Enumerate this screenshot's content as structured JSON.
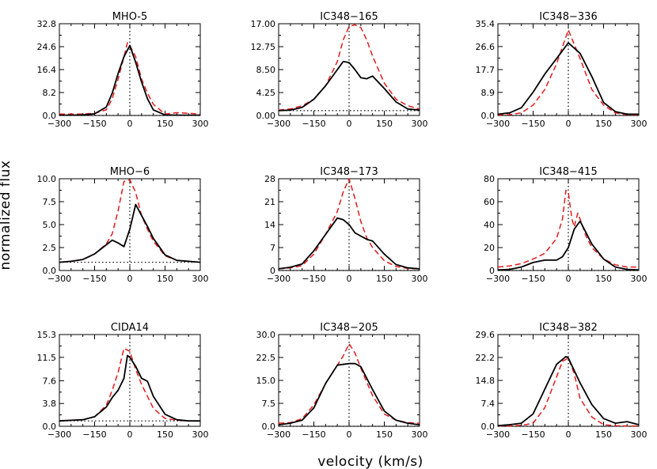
{
  "figure": {
    "xlabel": "velocity (km/s)",
    "ylabel": "normalized flux"
  },
  "chart_data": [
    {
      "type": "line",
      "title": "MHO-5",
      "xlim": [
        -300,
        300
      ],
      "ylim": [
        0,
        32.8
      ],
      "xticks": [
        -300,
        -150,
        0,
        150,
        300
      ],
      "xticklabels": [
        "−300",
        "−150",
        "0",
        "150",
        "300"
      ],
      "yticks": [
        0.0,
        8.2,
        16.4,
        24.6,
        32.8
      ],
      "yticklabels": [
        "0.0",
        "8.2",
        "16.4",
        "24.6",
        "32.8"
      ],
      "reference_lines": {
        "horizontal_y": 0,
        "vertical_x": 0
      },
      "series": [
        {
          "color": "#000000",
          "dash": "solid",
          "x": [
            -300,
            -250,
            -200,
            -150,
            -100,
            -75,
            -50,
            -25,
            0,
            25,
            50,
            75,
            100,
            150,
            200,
            250,
            300
          ],
          "y": [
            0.1,
            0.1,
            0.2,
            0.6,
            3,
            8,
            15,
            21,
            25,
            19,
            12,
            6,
            2,
            0.2,
            0.1,
            0.1,
            0.1
          ]
        },
        {
          "color": "#e41a1c",
          "dash": "dashed",
          "x": [
            -300,
            -250,
            -200,
            -150,
            -100,
            -75,
            -50,
            -25,
            -10,
            0,
            25,
            50,
            75,
            100,
            150,
            200,
            250,
            300
          ],
          "y": [
            0.5,
            0.5,
            0.5,
            0.8,
            2,
            6,
            13,
            21,
            26,
            25,
            21,
            13,
            8,
            4,
            0.5,
            1,
            0.8,
            0.5
          ]
        }
      ]
    },
    {
      "type": "line",
      "title": "IC348−165",
      "xlim": [
        -300,
        300
      ],
      "ylim": [
        0,
        17
      ],
      "xticks": [
        -300,
        -150,
        0,
        150,
        300
      ],
      "xticklabels": [
        "−300",
        "−150",
        "0",
        "150",
        "300"
      ],
      "yticks": [
        0.0,
        4.25,
        8.5,
        12.75,
        17.0
      ],
      "yticklabels": [
        "0.00",
        "4.25",
        "8.50",
        "12.75",
        "17.00"
      ],
      "reference_lines": {
        "horizontal_y": 0.9,
        "vertical_x": 0
      },
      "series": [
        {
          "color": "#000000",
          "dash": "solid",
          "x": [
            -300,
            -250,
            -200,
            -150,
            -100,
            -50,
            -25,
            0,
            25,
            50,
            75,
            100,
            150,
            200,
            250,
            300
          ],
          "y": [
            0.9,
            1,
            1.5,
            3,
            5.5,
            8.5,
            10,
            9.8,
            8.5,
            7,
            6.8,
            7.3,
            5,
            2.5,
            1.2,
            1
          ]
        },
        {
          "color": "#e41a1c",
          "dash": "dashed",
          "x": [
            -300,
            -250,
            -200,
            -150,
            -100,
            -50,
            -25,
            0,
            25,
            50,
            75,
            100,
            150,
            200,
            250,
            300
          ],
          "y": [
            1,
            1.2,
            1.8,
            3,
            5.5,
            10,
            14,
            16.5,
            16.8,
            16.3,
            14,
            11,
            6,
            3,
            1.8,
            1.2
          ]
        }
      ]
    },
    {
      "type": "line",
      "title": "IC348−336",
      "xlim": [
        -300,
        300
      ],
      "ylim": [
        0,
        35.4
      ],
      "xticks": [
        -300,
        -150,
        0,
        150,
        300
      ],
      "xticklabels": [
        "−300",
        "−150",
        "0",
        "150",
        "300"
      ],
      "yticks": [
        0.0,
        8.9,
        17.7,
        26.6,
        35.4
      ],
      "yticklabels": [
        "0.0",
        "8.9",
        "17.7",
        "26.6",
        "35.4"
      ],
      "reference_lines": {
        "horizontal_y": 0,
        "vertical_x": 0
      },
      "series": [
        {
          "color": "#000000",
          "dash": "solid",
          "x": [
            -300,
            -250,
            -200,
            -150,
            -100,
            -50,
            0,
            50,
            100,
            150,
            200,
            250,
            300
          ],
          "y": [
            0.5,
            1,
            3,
            9,
            16,
            22,
            28,
            24,
            15,
            5,
            1.5,
            0.5,
            0.5
          ]
        },
        {
          "color": "#e41a1c",
          "dash": "dashed",
          "x": [
            -300,
            -250,
            -200,
            -150,
            -100,
            -50,
            0,
            50,
            100,
            150,
            200,
            250,
            300
          ],
          "y": [
            0.2,
            0.3,
            1,
            4,
            10,
            20,
            33,
            22,
            10,
            4,
            1,
            0.3,
            0.2
          ]
        }
      ]
    },
    {
      "type": "line",
      "title": "MHO−6",
      "xlim": [
        -300,
        300
      ],
      "ylim": [
        0,
        10
      ],
      "xticks": [
        -300,
        -150,
        0,
        150,
        300
      ],
      "xticklabels": [
        "−300",
        "−150",
        "0",
        "150",
        "300"
      ],
      "yticks": [
        0.0,
        2.5,
        5.0,
        7.5,
        10.0
      ],
      "yticklabels": [
        "0.0",
        "2.5",
        "5.0",
        "7.5",
        "10.0"
      ],
      "reference_lines": {
        "horizontal_y": 0.9,
        "vertical_x": 0
      },
      "series": [
        {
          "color": "#000000",
          "dash": "solid",
          "x": [
            -300,
            -250,
            -200,
            -150,
            -100,
            -75,
            -50,
            -25,
            0,
            25,
            50,
            75,
            100,
            150,
            200,
            250,
            300
          ],
          "y": [
            0.9,
            1,
            1.2,
            1.8,
            2.8,
            3.3,
            3,
            2.6,
            4.5,
            7.2,
            6,
            4.8,
            3.5,
            1.7,
            1.1,
            1,
            0.9
          ]
        },
        {
          "color": "#e41a1c",
          "dash": "dashed",
          "x": [
            -300,
            -250,
            -200,
            -150,
            -100,
            -75,
            -50,
            -25,
            0,
            25,
            50,
            75,
            100,
            150,
            200,
            250,
            300
          ],
          "y": [
            0.9,
            1,
            1.2,
            1.8,
            2.9,
            4,
            6.5,
            9.7,
            9.9,
            8.5,
            6,
            4.5,
            3.2,
            1.6,
            1.1,
            1,
            0.9
          ]
        }
      ]
    },
    {
      "type": "line",
      "title": "IC348−173",
      "xlim": [
        -300,
        300
      ],
      "ylim": [
        0,
        28
      ],
      "xticks": [
        -300,
        -150,
        0,
        150,
        300
      ],
      "xticklabels": [
        "−300",
        "−150",
        "0",
        "150",
        "300"
      ],
      "yticks": [
        0,
        7,
        14,
        21,
        28
      ],
      "yticklabels": [
        "0",
        "7",
        "14",
        "21",
        "28"
      ],
      "reference_lines": {
        "horizontal_y": 0,
        "vertical_x": 0
      },
      "series": [
        {
          "color": "#000000",
          "dash": "solid",
          "x": [
            -300,
            -250,
            -200,
            -150,
            -100,
            -50,
            -25,
            0,
            25,
            50,
            75,
            100,
            150,
            200,
            250,
            300
          ],
          "y": [
            0.5,
            1,
            2,
            6,
            11,
            16,
            15.5,
            14,
            11.5,
            10.5,
            9.5,
            9,
            5,
            1.8,
            0.8,
            0.5
          ]
        },
        {
          "color": "#e41a1c",
          "dash": "dashed",
          "x": [
            -300,
            -250,
            -200,
            -150,
            -100,
            -50,
            -25,
            0,
            25,
            50,
            75,
            100,
            150,
            200,
            250,
            300
          ],
          "y": [
            0.5,
            0.8,
            1.5,
            5,
            11,
            18,
            24,
            28,
            22,
            15,
            10,
            7,
            3,
            1.2,
            0.6,
            0.5
          ]
        }
      ]
    },
    {
      "type": "line",
      "title": "IC348−415",
      "xlim": [
        -300,
        300
      ],
      "ylim": [
        0,
        80
      ],
      "xticks": [
        -300,
        -150,
        0,
        150,
        300
      ],
      "xticklabels": [
        "−300",
        "−150",
        "0",
        "150",
        "300"
      ],
      "yticks": [
        0,
        20,
        40,
        60,
        80
      ],
      "yticklabels": [
        "0",
        "20",
        "40",
        "60",
        "80"
      ],
      "reference_lines": {
        "horizontal_y": 0,
        "vertical_x": 0
      },
      "series": [
        {
          "color": "#000000",
          "dash": "solid",
          "x": [
            -300,
            -250,
            -200,
            -150,
            -100,
            -50,
            -25,
            0,
            25,
            50,
            75,
            100,
            150,
            200,
            250,
            300
          ],
          "y": [
            0.5,
            1,
            3,
            7,
            9,
            9,
            12,
            20,
            36,
            43,
            33,
            23,
            10,
            3,
            1,
            0.5
          ]
        },
        {
          "color": "#e41a1c",
          "dash": "dashed",
          "x": [
            -300,
            -250,
            -200,
            -150,
            -100,
            -50,
            -25,
            -10,
            0,
            15,
            25,
            40,
            50,
            75,
            100,
            150,
            200,
            250,
            300
          ],
          "y": [
            3,
            4,
            6,
            10,
            15,
            28,
            45,
            70,
            68,
            45,
            38,
            50,
            45,
            30,
            20,
            10,
            5,
            3,
            3
          ]
        }
      ]
    },
    {
      "type": "line",
      "title": "CIDA14",
      "xlim": [
        -300,
        300
      ],
      "ylim": [
        0,
        15.3
      ],
      "xticks": [
        -300,
        -150,
        0,
        150,
        300
      ],
      "xticklabels": [
        "−300",
        "−150",
        "0",
        "150",
        "300"
      ],
      "yticks": [
        0.0,
        3.8,
        7.6,
        11.5,
        15.3
      ],
      "yticklabels": [
        "0.0",
        "3.8",
        "7.6",
        "11.5",
        "15.3"
      ],
      "reference_lines": {
        "horizontal_y": 0.9,
        "vertical_x": 0
      },
      "series": [
        {
          "color": "#000000",
          "dash": "solid",
          "x": [
            -300,
            -250,
            -200,
            -150,
            -100,
            -75,
            -50,
            -25,
            -10,
            0,
            25,
            50,
            75,
            100,
            150,
            200,
            250,
            300
          ],
          "y": [
            0.9,
            1,
            1.1,
            1.6,
            3.2,
            4.8,
            6,
            8,
            11.8,
            11.5,
            10,
            8,
            7.5,
            5,
            2,
            1.1,
            0.9,
            0.9
          ]
        },
        {
          "color": "#e41a1c",
          "dash": "dashed",
          "x": [
            -300,
            -250,
            -200,
            -150,
            -100,
            -75,
            -50,
            -25,
            0,
            25,
            50,
            75,
            100,
            150,
            200,
            250,
            300
          ],
          "y": [
            0.9,
            1,
            1.1,
            1.6,
            3.5,
            6,
            9,
            13,
            12.5,
            9.5,
            7,
            5,
            3,
            1.3,
            1,
            0.9,
            0.9
          ]
        }
      ]
    },
    {
      "type": "line",
      "title": "IC348−205",
      "xlim": [
        -300,
        300
      ],
      "ylim": [
        0,
        30
      ],
      "xticks": [
        -300,
        -150,
        0,
        150,
        300
      ],
      "xticklabels": [
        "−300",
        "−150",
        "0",
        "150",
        "300"
      ],
      "yticks": [
        0.0,
        7.5,
        15.0,
        22.5,
        30.0
      ],
      "yticklabels": [
        "0.0",
        "7.5",
        "15.0",
        "22.5",
        "30.0"
      ],
      "reference_lines": {
        "horizontal_y": 0,
        "vertical_x": 0
      },
      "series": [
        {
          "color": "#000000",
          "dash": "solid",
          "x": [
            -300,
            -250,
            -200,
            -150,
            -100,
            -50,
            0,
            25,
            50,
            100,
            150,
            200,
            250,
            300
          ],
          "y": [
            0.5,
            1,
            2,
            6,
            14,
            20,
            20.5,
            20.5,
            19.5,
            12,
            5,
            2,
            1,
            0.5
          ]
        },
        {
          "color": "#e41a1c",
          "dash": "dashed",
          "x": [
            -300,
            -250,
            -200,
            -150,
            -100,
            -50,
            -25,
            0,
            25,
            50,
            100,
            150,
            200,
            250,
            300
          ],
          "y": [
            1,
            1.2,
            2.5,
            7,
            14,
            20,
            23,
            27,
            24,
            19,
            10,
            4,
            2,
            1.2,
            1
          ]
        }
      ]
    },
    {
      "type": "line",
      "title": "IC348−382",
      "xlim": [
        -300,
        300
      ],
      "ylim": [
        0,
        29.6
      ],
      "xticks": [
        -300,
        -150,
        0,
        150,
        300
      ],
      "xticklabels": [
        "−300",
        "−150",
        "0",
        "150",
        "300"
      ],
      "yticks": [
        0.0,
        7.4,
        14.8,
        22.2,
        29.6
      ],
      "yticklabels": [
        "0.0",
        "7.4",
        "14.8",
        "22.2",
        "29.6"
      ],
      "reference_lines": {
        "horizontal_y": 0,
        "vertical_x": 0
      },
      "series": [
        {
          "color": "#000000",
          "dash": "solid",
          "x": [
            -300,
            -250,
            -200,
            -150,
            -100,
            -50,
            -10,
            0,
            50,
            100,
            150,
            200,
            250,
            300
          ],
          "y": [
            0.2,
            0.5,
            1,
            4,
            12,
            20,
            22.5,
            22,
            14,
            7,
            2.5,
            1,
            1.5,
            0.5
          ]
        },
        {
          "color": "#e41a1c",
          "dash": "dashed",
          "x": [
            -300,
            -250,
            -200,
            -150,
            -100,
            -50,
            -25,
            0,
            25,
            50,
            100,
            150,
            200,
            250,
            300
          ],
          "y": [
            0.1,
            0.1,
            0.3,
            1,
            6,
            16,
            21,
            22,
            17,
            9,
            3,
            0.5,
            0.2,
            0.1,
            0.1
          ]
        }
      ]
    }
  ]
}
